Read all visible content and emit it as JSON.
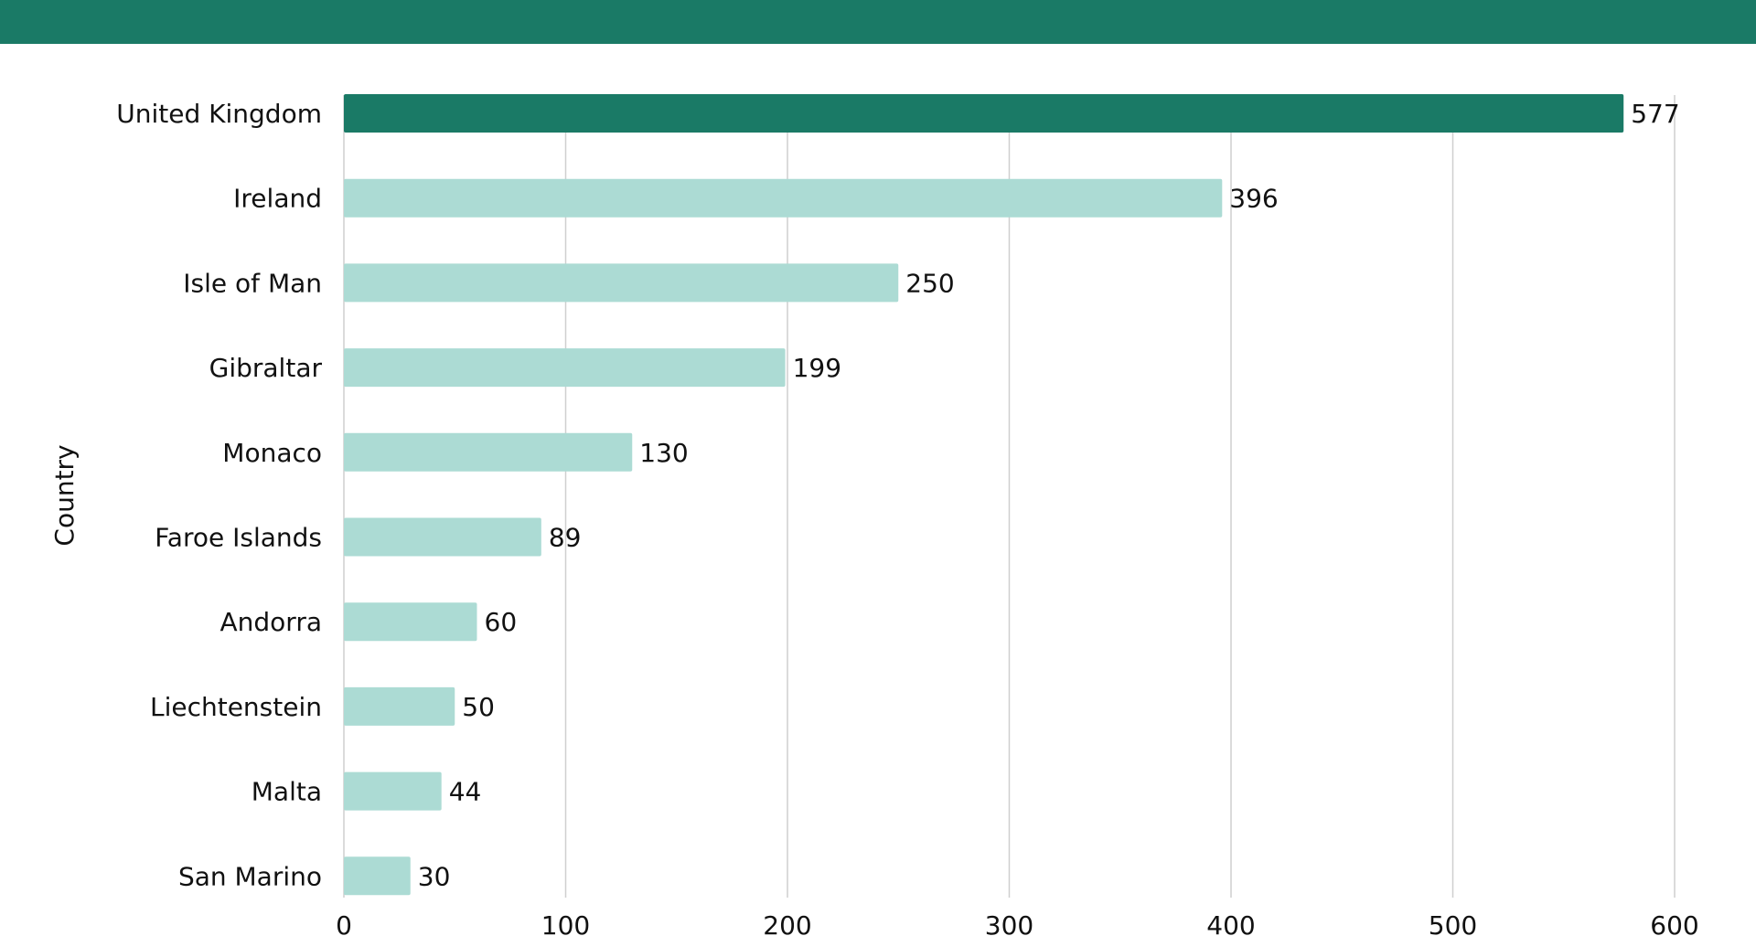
{
  "colors": {
    "header": "#1a7a66",
    "highlight_bar": "#1a7a66",
    "bar": "#acdbd4",
    "grid": "#cfcfcf"
  },
  "chart_data": {
    "type": "bar",
    "orientation": "horizontal",
    "title": "",
    "ylabel": "Country",
    "xlabel": "",
    "categories": [
      "United Kingdom",
      "Ireland",
      "Isle of Man",
      "Gibraltar",
      "Monaco",
      "Faroe Islands",
      "Andorra",
      "Liechtenstein",
      "Malta",
      "San Marino"
    ],
    "values": [
      577,
      396,
      250,
      199,
      130,
      89,
      60,
      50,
      44,
      30
    ],
    "highlight_index": 0,
    "xlim": [
      0,
      600
    ],
    "xticks": [
      0,
      100,
      200,
      300,
      400,
      500,
      600
    ],
    "grid": true,
    "data_labels": true
  }
}
